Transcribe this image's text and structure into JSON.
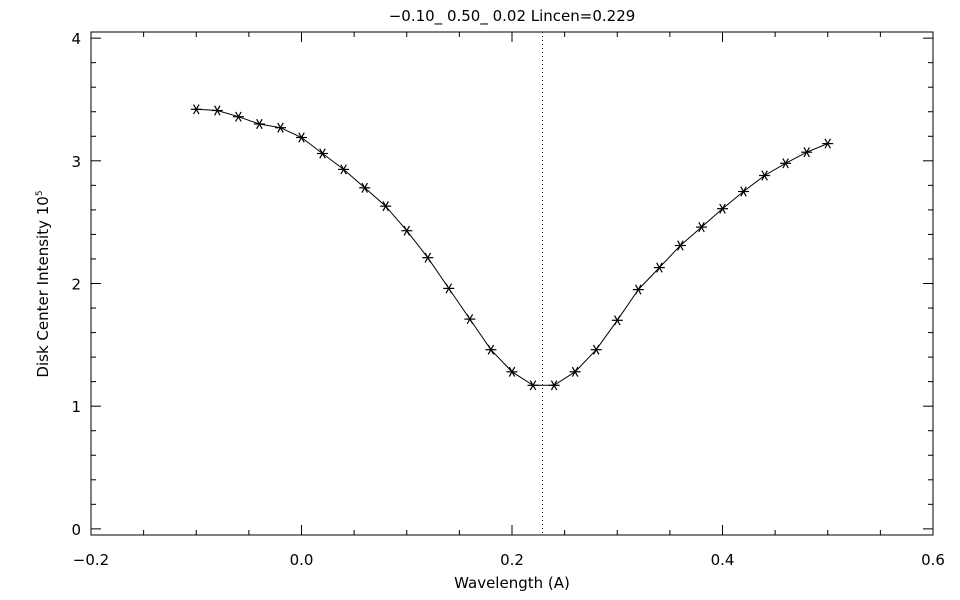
{
  "chart_data": {
    "type": "line",
    "title": "−0.10_  0.50_  0.02   Lincen=0.229",
    "xlabel": "Wavelength (A)",
    "ylabel": "Disk Center Intensity 10",
    "ylabel_exponent": "5",
    "xlim": [
      -0.2,
      0.6
    ],
    "ylim": [
      -0.05,
      4.05
    ],
    "x_ticks": [
      -0.2,
      0.0,
      0.2,
      0.4,
      0.6
    ],
    "x_tick_labels": [
      "−0.2",
      "0.0",
      "0.2",
      "0.4",
      "0.6"
    ],
    "y_ticks": [
      0,
      1,
      2,
      3,
      4
    ],
    "y_tick_labels": [
      "0",
      "1",
      "2",
      "3",
      "4"
    ],
    "grid": false,
    "marker": "asterisk",
    "reference_line": {
      "x": 0.229,
      "style": "dotted"
    },
    "series": [
      {
        "x": [
          -0.1,
          -0.08,
          -0.06,
          -0.04,
          -0.02,
          0.0,
          0.02,
          0.04,
          0.06,
          0.08,
          0.1,
          0.12,
          0.14,
          0.16,
          0.18,
          0.2,
          0.22,
          0.24,
          0.26,
          0.28,
          0.3,
          0.32,
          0.34,
          0.36,
          0.38,
          0.4,
          0.42,
          0.44,
          0.46,
          0.48,
          0.5
        ],
        "values": [
          3.42,
          3.41,
          3.36,
          3.3,
          3.27,
          3.19,
          3.06,
          2.93,
          2.78,
          2.63,
          2.43,
          2.21,
          1.96,
          1.71,
          1.46,
          1.28,
          1.17,
          1.17,
          1.28,
          1.46,
          1.7,
          1.95,
          2.13,
          2.31,
          2.46,
          2.61,
          2.75,
          2.88,
          2.98,
          3.07,
          3.14
        ]
      }
    ]
  }
}
